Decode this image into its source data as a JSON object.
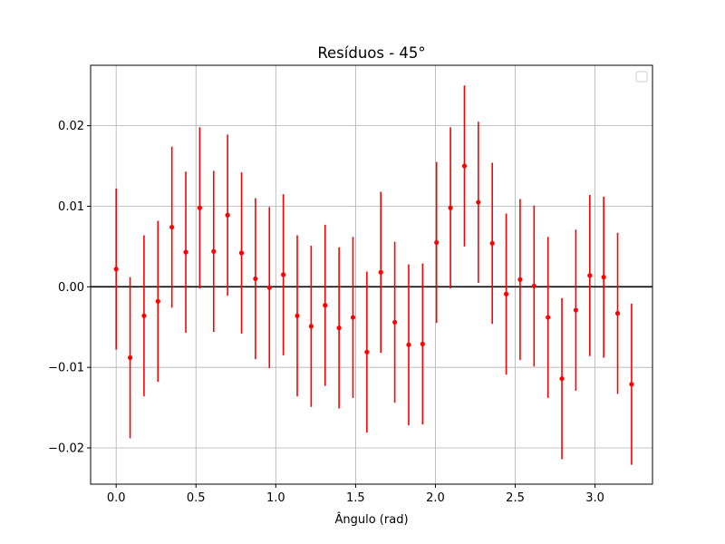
{
  "chart_data": {
    "type": "scatter",
    "title": "Resíduos - 45°",
    "xlabel": "Ângulo (rad)",
    "ylabel": "",
    "xlim": [
      -0.16,
      3.36
    ],
    "ylim": [
      -0.0245,
      0.0275
    ],
    "x_ticks": [
      0.0,
      0.5,
      1.0,
      1.5,
      2.0,
      2.5,
      3.0
    ],
    "x_tick_labels": [
      "0.0",
      "0.5",
      "1.0",
      "1.5",
      "2.0",
      "2.5",
      "3.0"
    ],
    "y_ticks": [
      -0.02,
      -0.01,
      0.0,
      0.01,
      0.02
    ],
    "y_tick_labels": [
      "−0.02",
      "−0.01",
      "0.00",
      "0.01",
      "0.02"
    ],
    "grid": true,
    "legend": {
      "placement": "top-right",
      "entries": []
    },
    "reference_line": {
      "y": 0.0,
      "color": "#000000"
    },
    "series": [
      {
        "color": "#ff0000",
        "error": 0.01,
        "x": [
          0.0,
          0.0873,
          0.1745,
          0.2618,
          0.3491,
          0.4363,
          0.5236,
          0.6109,
          0.6981,
          0.7854,
          0.8727,
          0.9599,
          1.0472,
          1.1345,
          1.2217,
          1.309,
          1.3963,
          1.4835,
          1.5708,
          1.6581,
          1.7453,
          1.8326,
          1.9199,
          2.0071,
          2.0944,
          2.1817,
          2.2689,
          2.3562,
          2.4435,
          2.5307,
          2.618,
          2.7053,
          2.7925,
          2.8798,
          2.9671,
          3.0543,
          3.1416,
          3.2289
        ],
        "y": [
          0.0022,
          -0.0088,
          -0.0036,
          -0.0018,
          0.0074,
          0.0043,
          0.0098,
          0.0044,
          0.0089,
          0.0042,
          0.001,
          -0.0001,
          0.0015,
          -0.0036,
          -0.0049,
          -0.0023,
          -0.0051,
          -0.0038,
          -0.0081,
          0.0018,
          -0.0044,
          -0.0072,
          -0.0071,
          0.0055,
          0.0098,
          0.015,
          0.0105,
          0.0054,
          -0.0009,
          0.0009,
          0.0001,
          -0.0038,
          -0.0114,
          -0.0029,
          0.0014,
          0.0012,
          -0.0033,
          -0.0121
        ]
      }
    ]
  }
}
